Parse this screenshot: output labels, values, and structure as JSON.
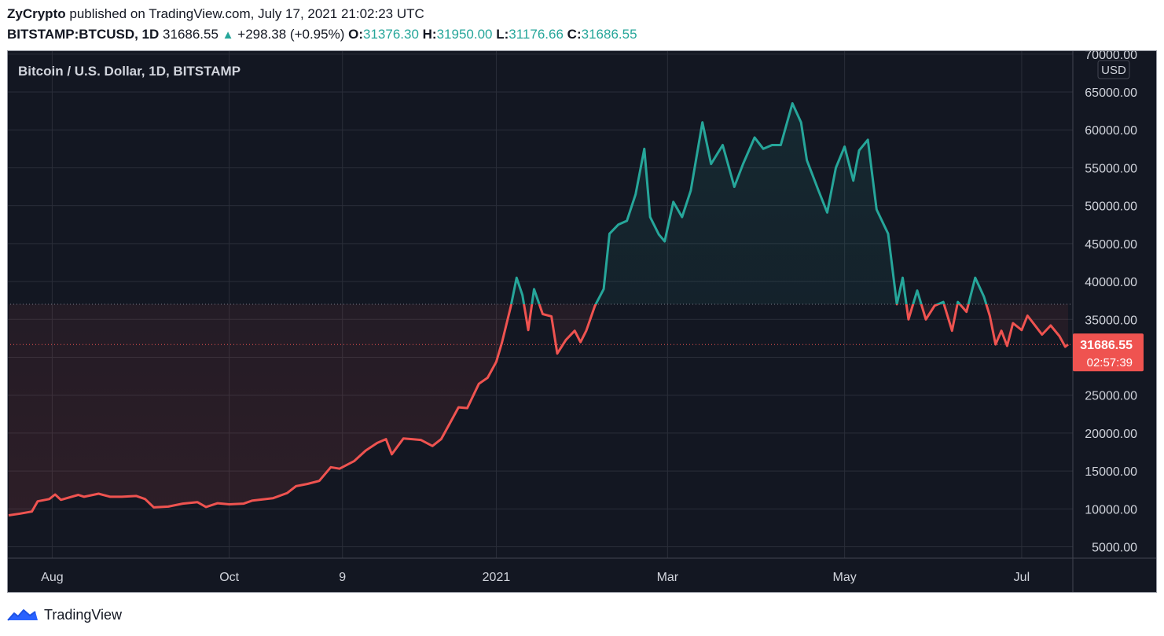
{
  "header": {
    "author": "ZyCrypto",
    "published_text": "published on TradingView.com, July 17, 2021 21:02:23 UTC",
    "symbol": "BITSTAMP:BTCUSD, 1D",
    "last": "31686.55",
    "change_arrow": "▲",
    "change": "+298.38 (+0.95%)",
    "o_label": "O:",
    "o_value": "31376.30",
    "h_label": "H:",
    "h_value": "31950.00",
    "l_label": "L:",
    "l_value": "31176.66",
    "c_label": "C:",
    "c_value": "31686.55"
  },
  "footer": {
    "brand": "TradingView",
    "brand_icon": "tradingview-logo-icon"
  },
  "chart_data": {
    "type": "area",
    "title": "Bitcoin / U.S. Dollar, 1D, BITSTAMP",
    "currency": "USD",
    "baseline": 37000,
    "last_price_label": "31686.55",
    "countdown_label": "02:57:39",
    "y_ticks": [
      "70000.00",
      "65000.00",
      "60000.00",
      "55000.00",
      "50000.00",
      "45000.00",
      "40000.00",
      "35000.00",
      "30000.00",
      "25000.00",
      "20000.00",
      "15000.00",
      "10000.00",
      "5000.00"
    ],
    "y_tick_values": [
      70000,
      65000,
      60000,
      55000,
      50000,
      45000,
      40000,
      35000,
      30000,
      25000,
      20000,
      15000,
      10000,
      5000
    ],
    "ylim": [
      3500,
      70500
    ],
    "x_ticks": [
      {
        "label": "Aug",
        "date": "2020-08-01"
      },
      {
        "label": "Oct",
        "date": "2020-10-01"
      },
      {
        "label": "9",
        "date": "2020-11-09"
      },
      {
        "label": "2021",
        "date": "2021-01-01"
      },
      {
        "label": "Mar",
        "date": "2021-03-01"
      },
      {
        "label": "May",
        "date": "2021-05-01"
      },
      {
        "label": "Jul",
        "date": "2021-07-01"
      }
    ],
    "xlim": [
      "2020-07-17",
      "2021-07-17"
    ],
    "grid": true,
    "colors": {
      "above": "#26a69a",
      "below": "#ef5350",
      "background": "#131722",
      "grid": "#2a2e39",
      "text": "#d1d4dc"
    },
    "series": [
      {
        "points": [
          [
            "2020-07-17",
            9150
          ],
          [
            "2020-07-21",
            9380
          ],
          [
            "2020-07-25",
            9650
          ],
          [
            "2020-07-27",
            11000
          ],
          [
            "2020-07-31",
            11300
          ],
          [
            "2020-08-02",
            11900
          ],
          [
            "2020-08-04",
            11200
          ],
          [
            "2020-08-10",
            11850
          ],
          [
            "2020-08-12",
            11600
          ],
          [
            "2020-08-17",
            12000
          ],
          [
            "2020-08-21",
            11600
          ],
          [
            "2020-08-25",
            11600
          ],
          [
            "2020-08-30",
            11700
          ],
          [
            "2020-09-02",
            11300
          ],
          [
            "2020-09-05",
            10200
          ],
          [
            "2020-09-10",
            10300
          ],
          [
            "2020-09-15",
            10700
          ],
          [
            "2020-09-20",
            10900
          ],
          [
            "2020-09-23",
            10250
          ],
          [
            "2020-09-27",
            10750
          ],
          [
            "2020-10-01",
            10600
          ],
          [
            "2020-10-06",
            10700
          ],
          [
            "2020-10-09",
            11100
          ],
          [
            "2020-10-16",
            11400
          ],
          [
            "2020-10-21",
            12100
          ],
          [
            "2020-10-24",
            13000
          ],
          [
            "2020-10-28",
            13300
          ],
          [
            "2020-11-01",
            13700
          ],
          [
            "2020-11-05",
            15500
          ],
          [
            "2020-11-08",
            15300
          ],
          [
            "2020-11-13",
            16300
          ],
          [
            "2020-11-17",
            17700
          ],
          [
            "2020-11-21",
            18700
          ],
          [
            "2020-11-24",
            19200
          ],
          [
            "2020-11-26",
            17200
          ],
          [
            "2020-11-30",
            19300
          ],
          [
            "2020-12-03",
            19200
          ],
          [
            "2020-12-06",
            19100
          ],
          [
            "2020-12-10",
            18300
          ],
          [
            "2020-12-13",
            19200
          ],
          [
            "2020-12-16",
            21300
          ],
          [
            "2020-12-19",
            23400
          ],
          [
            "2020-12-22",
            23300
          ],
          [
            "2020-12-26",
            26500
          ],
          [
            "2020-12-29",
            27300
          ],
          [
            "2021-01-01",
            29400
          ],
          [
            "2021-01-03",
            32000
          ],
          [
            "2021-01-06",
            36700
          ],
          [
            "2021-01-08",
            40500
          ],
          [
            "2021-01-10",
            38200
          ],
          [
            "2021-01-12",
            33600
          ],
          [
            "2021-01-14",
            39000
          ],
          [
            "2021-01-17",
            35700
          ],
          [
            "2021-01-20",
            35400
          ],
          [
            "2021-01-22",
            30500
          ],
          [
            "2021-01-25",
            32300
          ],
          [
            "2021-01-28",
            33500
          ],
          [
            "2021-01-30",
            32000
          ],
          [
            "2021-02-01",
            33500
          ],
          [
            "2021-02-04",
            36800
          ],
          [
            "2021-02-07",
            39000
          ],
          [
            "2021-02-09",
            46300
          ],
          [
            "2021-02-12",
            47500
          ],
          [
            "2021-02-15",
            48000
          ],
          [
            "2021-02-18",
            51500
          ],
          [
            "2021-02-21",
            57500
          ],
          [
            "2021-02-23",
            48500
          ],
          [
            "2021-02-26",
            46200
          ],
          [
            "2021-02-28",
            45300
          ],
          [
            "2021-03-03",
            50500
          ],
          [
            "2021-03-06",
            48500
          ],
          [
            "2021-03-09",
            52000
          ],
          [
            "2021-03-13",
            61000
          ],
          [
            "2021-03-16",
            55500
          ],
          [
            "2021-03-20",
            58000
          ],
          [
            "2021-03-24",
            52500
          ],
          [
            "2021-03-27",
            55500
          ],
          [
            "2021-03-31",
            59000
          ],
          [
            "2021-04-03",
            57500
          ],
          [
            "2021-04-06",
            58000
          ],
          [
            "2021-04-09",
            58000
          ],
          [
            "2021-04-13",
            63500
          ],
          [
            "2021-04-16",
            61000
          ],
          [
            "2021-04-18",
            56000
          ],
          [
            "2021-04-22",
            52000
          ],
          [
            "2021-04-25",
            49100
          ],
          [
            "2021-04-28",
            55000
          ],
          [
            "2021-05-01",
            57800
          ],
          [
            "2021-05-04",
            53300
          ],
          [
            "2021-05-06",
            57300
          ],
          [
            "2021-05-09",
            58700
          ],
          [
            "2021-05-12",
            49500
          ],
          [
            "2021-05-16",
            46300
          ],
          [
            "2021-05-19",
            37000
          ],
          [
            "2021-05-21",
            40500
          ],
          [
            "2021-05-23",
            35000
          ],
          [
            "2021-05-26",
            38800
          ],
          [
            "2021-05-29",
            35000
          ],
          [
            "2021-06-01",
            36800
          ],
          [
            "2021-06-04",
            37300
          ],
          [
            "2021-06-07",
            33500
          ],
          [
            "2021-06-09",
            37300
          ],
          [
            "2021-06-12",
            36000
          ],
          [
            "2021-06-15",
            40500
          ],
          [
            "2021-06-18",
            38000
          ],
          [
            "2021-06-20",
            35500
          ],
          [
            "2021-06-22",
            31700
          ],
          [
            "2021-06-24",
            33500
          ],
          [
            "2021-06-26",
            31500
          ],
          [
            "2021-06-28",
            34500
          ],
          [
            "2021-07-01",
            33600
          ],
          [
            "2021-07-03",
            35500
          ],
          [
            "2021-07-06",
            34000
          ],
          [
            "2021-07-08",
            33000
          ],
          [
            "2021-07-11",
            34200
          ],
          [
            "2021-07-14",
            32800
          ],
          [
            "2021-07-16",
            31400
          ],
          [
            "2021-07-17",
            31686.55
          ]
        ]
      }
    ]
  }
}
